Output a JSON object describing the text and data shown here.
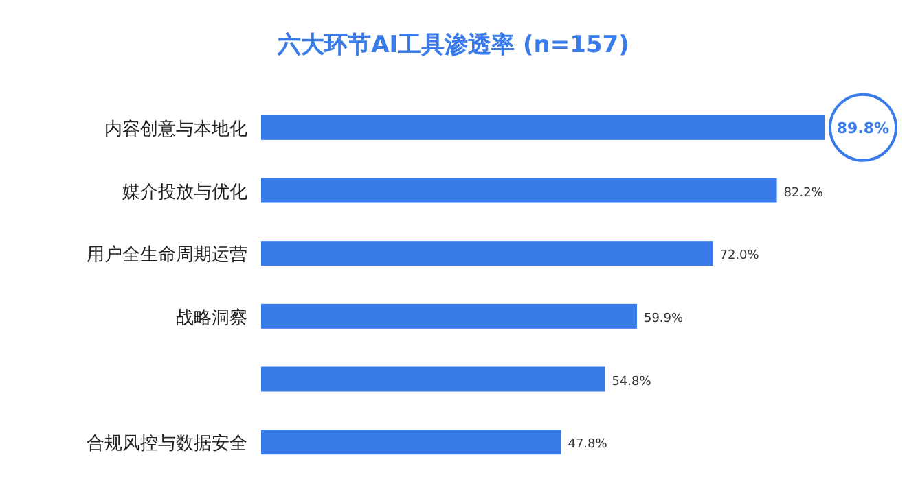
{
  "chart_data": {
    "type": "bar",
    "orientation": "horizontal",
    "title": "六大环节AI工具渗透率 (n=157)",
    "categories": [
      "内容创意与本地化",
      "媒介投放与优化",
      "用户全生命周期运营",
      "战略洞察",
      null,
      "合规风控与数据安全"
    ],
    "values": [
      89.8,
      82.2,
      72.0,
      59.9,
      54.8,
      47.8
    ],
    "value_labels": [
      "89.8%",
      "82.2%",
      "72.0%",
      "59.9%",
      "54.8%",
      "47.8%"
    ],
    "color": "#3a7bea"
  }
}
